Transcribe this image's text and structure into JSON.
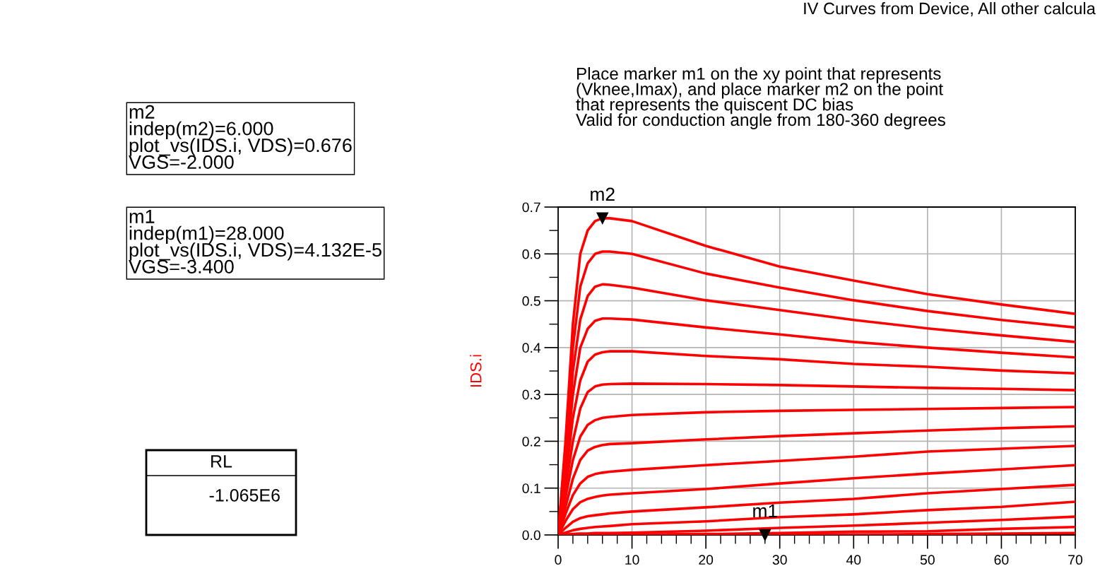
{
  "chart_data": {
    "type": "line",
    "title": "IV Curves from Device, All other calcula",
    "ylabel": "IDS.i",
    "x": [
      0,
      1,
      2,
      3,
      4,
      5,
      6,
      7,
      10,
      20,
      30,
      40,
      50,
      60,
      70
    ],
    "series": [
      {
        "color": "#ff0000",
        "values": [
          0,
          0.2,
          0.45,
          0.6,
          0.65,
          0.67,
          0.676,
          0.676,
          0.67,
          0.617,
          0.573,
          0.543,
          0.514,
          0.492,
          0.472
        ]
      },
      {
        "color": "#ff0000",
        "values": [
          0,
          0.18,
          0.4,
          0.53,
          0.58,
          0.6,
          0.605,
          0.605,
          0.6,
          0.558,
          0.528,
          0.501,
          0.478,
          0.459,
          0.443
        ]
      },
      {
        "color": "#ff0000",
        "values": [
          0,
          0.16,
          0.35,
          0.46,
          0.51,
          0.53,
          0.535,
          0.534,
          0.528,
          0.501,
          0.48,
          0.459,
          0.441,
          0.426,
          0.412
        ]
      },
      {
        "color": "#ff0000",
        "values": [
          0,
          0.14,
          0.3,
          0.4,
          0.44,
          0.457,
          0.462,
          0.462,
          0.46,
          0.443,
          0.428,
          0.412,
          0.4,
          0.389,
          0.379
        ]
      },
      {
        "color": "#ff0000",
        "values": [
          0,
          0.12,
          0.25,
          0.33,
          0.37,
          0.385,
          0.39,
          0.392,
          0.392,
          0.382,
          0.375,
          0.365,
          0.359,
          0.351,
          0.345
        ]
      },
      {
        "color": "#ff0000",
        "values": [
          0,
          0.1,
          0.2,
          0.27,
          0.305,
          0.317,
          0.321,
          0.322,
          0.323,
          0.322,
          0.32,
          0.317,
          0.314,
          0.312,
          0.309
        ]
      },
      {
        "color": "#ff0000",
        "values": [
          0,
          0.08,
          0.16,
          0.21,
          0.235,
          0.245,
          0.25,
          0.252,
          0.256,
          0.262,
          0.265,
          0.267,
          0.269,
          0.271,
          0.273
        ]
      },
      {
        "color": "#ff0000",
        "values": [
          0,
          0.06,
          0.12,
          0.16,
          0.18,
          0.188,
          0.192,
          0.194,
          0.196,
          0.204,
          0.211,
          0.217,
          0.223,
          0.228,
          0.232
        ]
      },
      {
        "color": "#ff0000",
        "values": [
          0,
          0.045,
          0.085,
          0.11,
          0.124,
          0.13,
          0.133,
          0.135,
          0.139,
          0.149,
          0.158,
          0.167,
          0.178,
          0.184,
          0.19
        ]
      },
      {
        "color": "#ff0000",
        "values": [
          0,
          0.03,
          0.055,
          0.07,
          0.077,
          0.081,
          0.084,
          0.086,
          0.089,
          0.098,
          0.11,
          0.121,
          0.131,
          0.14,
          0.149
        ]
      },
      {
        "color": "#ff0000",
        "values": [
          0,
          0.015,
          0.028,
          0.036,
          0.04,
          0.042,
          0.044,
          0.046,
          0.05,
          0.059,
          0.069,
          0.077,
          0.089,
          0.098,
          0.107
        ]
      },
      {
        "color": "#ff0000",
        "values": [
          0,
          0.005,
          0.01,
          0.013,
          0.015,
          0.017,
          0.018,
          0.019,
          0.023,
          0.029,
          0.038,
          0.044,
          0.053,
          0.06,
          0.071
        ]
      },
      {
        "color": "#ff0000",
        "values": [
          0,
          0.001,
          0.002,
          0.003,
          0.003,
          0.004,
          0.004,
          0.004,
          0.005,
          0.009,
          0.015,
          0.02,
          0.026,
          0.032,
          0.039
        ]
      },
      {
        "color": "#ff0000",
        "values": [
          0,
          0,
          0,
          0,
          0,
          0,
          0,
          0,
          0.001,
          0.002,
          0.004,
          0.007,
          0.008,
          0.013,
          0.017
        ]
      },
      {
        "color": "#ff0000",
        "values": [
          0,
          0,
          0,
          0,
          0,
          0,
          0,
          0,
          0,
          0,
          0.001,
          0.001,
          0.002,
          0.003,
          0.004
        ]
      }
    ],
    "xlim": [
      0,
      70
    ],
    "xticks": [
      0,
      10,
      20,
      30,
      40,
      50,
      60,
      70
    ],
    "ylim": [
      0,
      0.7
    ],
    "yticks": [
      {
        "value": 0,
        "label": "0.0"
      },
      0.1,
      0.2,
      0.3,
      0.4,
      0.5,
      0.6,
      0.7
    ],
    "grid": true,
    "marker": "none",
    "line_style": "solid",
    "annotations": [
      "Place marker m1 on the xy point that represents\n(Vknee,Imax), and place marker m2 on the point\nthat represents the quiscent DC bias\nValid for conduction angle from 180-360 degrees",
      "m2\nindep(m2)=6.000\nplot_vs(IDS.i, VDS)=0.676\nVGS=-2.000",
      "m1\nindep(m1)=28.000\nplot_vs(IDS.i, VDS)=4.132E-5\nVGS=-3.400",
      "RL",
      "-1.065E6",
      {
        "text": "m2",
        "x": 6,
        "y": 0.676
      },
      {
        "text": "m1",
        "x": 28,
        "y": 4.132e-05
      }
    ]
  }
}
